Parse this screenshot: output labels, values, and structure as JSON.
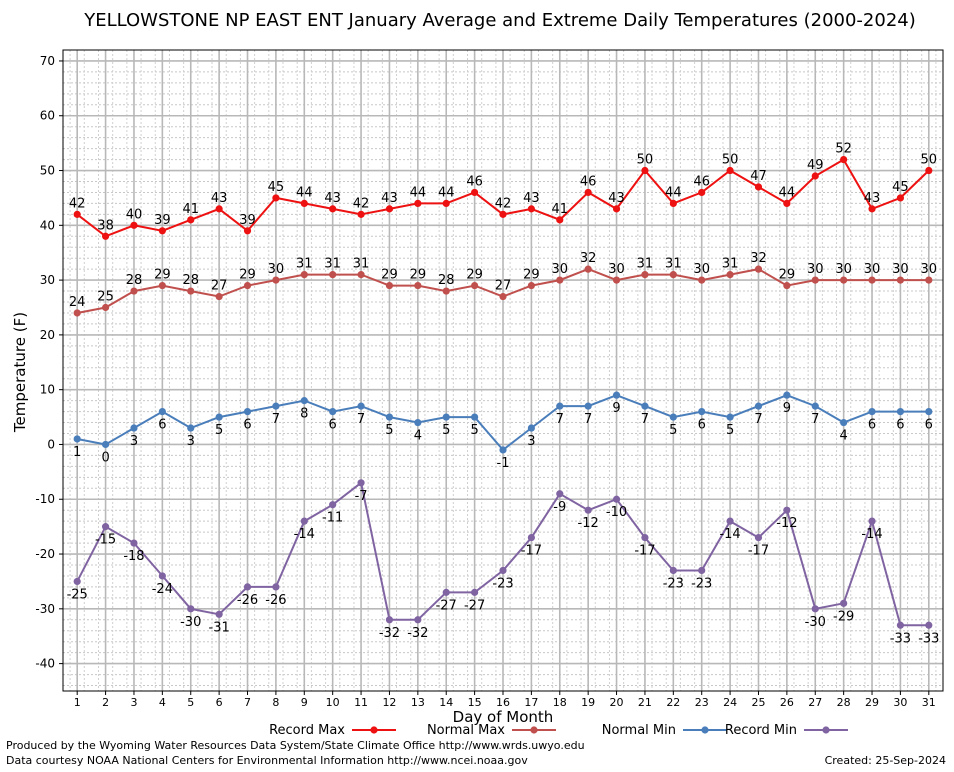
{
  "chart_data": {
    "type": "line",
    "title": "YELLOWSTONE NP EAST ENT January Average and Extreme Daily Temperatures (2000-2024)",
    "xlabel": "Day of Month",
    "ylabel": "Temperature (F)",
    "ylim": [
      -45,
      72
    ],
    "yticks": [
      -40,
      -30,
      -20,
      -10,
      0,
      10,
      20,
      30,
      40,
      50,
      60,
      70
    ],
    "grid": true,
    "legend_position": "bottom",
    "x": [
      1,
      2,
      3,
      4,
      5,
      6,
      7,
      8,
      9,
      10,
      11,
      12,
      13,
      14,
      15,
      16,
      17,
      18,
      19,
      20,
      21,
      22,
      23,
      24,
      25,
      26,
      27,
      28,
      29,
      30,
      31
    ],
    "series": [
      {
        "name": "Record Max",
        "color": "#ee1111",
        "values": [
          42,
          38,
          40,
          39,
          41,
          43,
          39,
          45,
          44,
          43,
          42,
          43,
          44,
          44,
          46,
          42,
          43,
          41,
          46,
          43,
          50,
          44,
          46,
          50,
          47,
          44,
          49,
          52,
          43,
          45,
          50
        ]
      },
      {
        "name": "Normal Max",
        "color": "#c0504d",
        "values": [
          24,
          25,
          28,
          29,
          28,
          27,
          29,
          30,
          31,
          31,
          31,
          29,
          29,
          28,
          29,
          27,
          29,
          30,
          32,
          30,
          31,
          31,
          30,
          31,
          32,
          29,
          30,
          30,
          30,
          30,
          30
        ]
      },
      {
        "name": "Normal Min",
        "color": "#4a7ebb",
        "values": [
          1,
          0,
          3,
          6,
          3,
          5,
          6,
          7,
          8,
          6,
          7,
          5,
          4,
          5,
          5,
          -1,
          3,
          7,
          7,
          9,
          7,
          5,
          6,
          5,
          7,
          9,
          7,
          4,
          6,
          6,
          6
        ]
      },
      {
        "name": "Record Min",
        "color": "#8064a2",
        "values": [
          -25,
          -15,
          -18,
          -24,
          -30,
          -31,
          -26,
          -26,
          -14,
          -11,
          -7,
          -32,
          -32,
          -27,
          -27,
          -23,
          -17,
          -9,
          -12,
          -10,
          -17,
          -23,
          -23,
          -14,
          -17,
          -12,
          -30,
          -29,
          -14,
          -33,
          -33
        ]
      }
    ]
  },
  "footer": {
    "producer": "Produced by the Wyoming Water Resources Data System/State Climate Office http://www.wrds.uwyo.edu",
    "source": "Data courtesy NOAA National Centers for Environmental Information http://www.ncei.noaa.gov",
    "created": "Created:  25-Sep-2024"
  }
}
